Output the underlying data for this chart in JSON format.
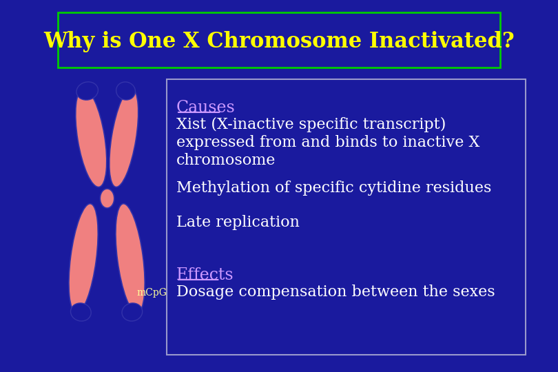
{
  "bg_color": "#1a1a9e",
  "title": "Why is One X Chromosome Inactivated?",
  "title_color": "#ffff00",
  "title_box_edge_color": "#00cc00",
  "title_box_bg": "#1a1a9e",
  "content_box_edge_color": "#9999cc",
  "content_box_bg": "#1a1a9e",
  "causes_label": "Causes",
  "causes_color": "#cc99ff",
  "line1": "Xist (X-inactive specific transcript)",
  "line2": "expressed from and binds to inactive X",
  "line3": "chromosome",
  "line4": "Methylation of specific cytidine residues",
  "line5": "Late replication",
  "effects_label": "Effects",
  "effects_color": "#cc99ff",
  "line6": "Dosage compensation between the sexes",
  "text_color": "#ffffff",
  "mcpg_label": "mCpG",
  "mcpg_color": "#ffff99",
  "chrom_fill": "#f08080",
  "chrom_edge": "#3333aa"
}
